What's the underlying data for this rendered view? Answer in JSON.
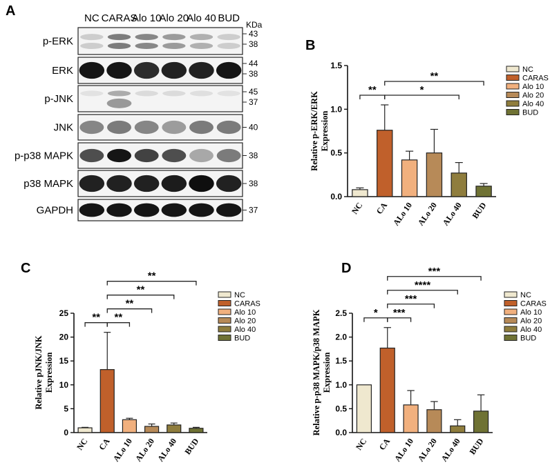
{
  "panels": {
    "A": "A",
    "B": "B",
    "C": "C",
    "D": "D"
  },
  "blot": {
    "lanes": [
      "NC",
      "CARAS",
      "Alo 10",
      "Alo 20",
      "Alo 40",
      "BUD"
    ],
    "kda_header": "KDa",
    "rows": [
      {
        "label": "p-ERK",
        "kda": [
          "43",
          "38"
        ],
        "style": "doublet-faint",
        "intensity": [
          0.15,
          0.55,
          0.5,
          0.4,
          0.3,
          0.15
        ]
      },
      {
        "label": "ERK",
        "kda": [
          "44",
          "38"
        ],
        "style": "dark",
        "intensity": [
          0.95,
          0.95,
          0.85,
          0.9,
          0.9,
          0.95
        ]
      },
      {
        "label": "p-JNK",
        "kda": [
          "45",
          "37"
        ],
        "style": "jnk",
        "intensity": [
          0.1,
          0.5,
          0.15,
          0.15,
          0.12,
          0.1
        ]
      },
      {
        "label": "JNK",
        "kda": [
          "40"
        ],
        "style": "mid",
        "intensity": [
          0.45,
          0.5,
          0.45,
          0.35,
          0.5,
          0.5
        ]
      },
      {
        "label": "p-p38 MAPK",
        "kda": [
          "38"
        ],
        "style": "mid",
        "intensity": [
          0.7,
          0.95,
          0.75,
          0.7,
          0.3,
          0.5
        ]
      },
      {
        "label": "p38 MAPK",
        "kda": [
          "38"
        ],
        "style": "dark",
        "intensity": [
          0.9,
          0.9,
          0.9,
          0.92,
          0.98,
          0.9
        ]
      },
      {
        "label": "GAPDH",
        "kda": [
          "37"
        ],
        "style": "dark",
        "intensity": [
          0.95,
          0.95,
          0.95,
          0.95,
          0.95,
          0.95
        ]
      }
    ]
  },
  "chart_data": [
    {
      "type": "bar",
      "panel": "B",
      "categories": [
        "NC",
        "CA",
        "ALo 10",
        "ALo 20",
        "ALo 40",
        "BUD"
      ],
      "values": [
        0.08,
        0.76,
        0.42,
        0.5,
        0.27,
        0.12
      ],
      "errors": [
        0.02,
        0.29,
        0.1,
        0.27,
        0.12,
        0.03
      ],
      "ylabel": "Relative p-ERK/ERK Expression",
      "yticks": [
        "0.0",
        "0.5",
        "1.0",
        "1.5"
      ],
      "ylim": [
        0,
        1.5
      ],
      "legend": [
        "NC",
        "CARAS",
        "Alo 10",
        "Alo 20",
        "Alo 40",
        "BUD"
      ],
      "colors": [
        "#efe8cf",
        "#c0602b",
        "#f1b07e",
        "#b78a58",
        "#8f7d3d",
        "#6f7234"
      ],
      "significance": [
        {
          "from": 0,
          "to": 1,
          "label": "**"
        },
        {
          "from": 1,
          "to": 4,
          "label": "*"
        },
        {
          "from": 1,
          "to": 5,
          "label": "**"
        }
      ]
    },
    {
      "type": "bar",
      "panel": "C",
      "categories": [
        "NC",
        "CA",
        "ALo 10",
        "ALo 20",
        "ALo 40",
        "BUD"
      ],
      "values": [
        1.0,
        13.2,
        2.7,
        1.3,
        1.6,
        0.9
      ],
      "errors": [
        0.1,
        7.8,
        0.3,
        0.5,
        0.4,
        0.2
      ],
      "ylabel": "Relative pJNK/JNK Expression",
      "yticks": [
        "0",
        "5",
        "10",
        "15",
        "20",
        "25"
      ],
      "ylim": [
        0,
        25
      ],
      "legend": [
        "NC",
        "CARAS",
        "Alo 10",
        "Alo 20",
        "Alo 40",
        "BUD"
      ],
      "colors": [
        "#efe8cf",
        "#c0602b",
        "#f1b07e",
        "#b78a58",
        "#8f7d3d",
        "#6f7234"
      ],
      "significance": [
        {
          "from": 0,
          "to": 1,
          "label": "**"
        },
        {
          "from": 1,
          "to": 2,
          "label": "**"
        },
        {
          "from": 1,
          "to": 3,
          "label": "**"
        },
        {
          "from": 1,
          "to": 4,
          "label": "**"
        },
        {
          "from": 1,
          "to": 5,
          "label": "**"
        }
      ]
    },
    {
      "type": "bar",
      "panel": "D",
      "categories": [
        "NC",
        "CA",
        "ALo 10",
        "ALo 20",
        "ALo 40",
        "BUD"
      ],
      "values": [
        1.0,
        1.77,
        0.58,
        0.48,
        0.14,
        0.45
      ],
      "errors": [
        0.0,
        0.43,
        0.3,
        0.17,
        0.13,
        0.34
      ],
      "ylabel": "Relative p-p38 MAPK/p38 MAPK Expression",
      "yticks": [
        "0.0",
        "0.5",
        "1.0",
        "1.5",
        "2.0",
        "2.5"
      ],
      "ylim": [
        0,
        2.5
      ],
      "legend": [
        "NC",
        "CARAS",
        "Alo 10",
        "Alo 20",
        "Alo 40",
        "BUD"
      ],
      "colors": [
        "#efe8cf",
        "#c0602b",
        "#f1b07e",
        "#b78a58",
        "#8f7d3d",
        "#6f7234"
      ],
      "significance": [
        {
          "from": 0,
          "to": 1,
          "label": "*"
        },
        {
          "from": 1,
          "to": 2,
          "label": "***"
        },
        {
          "from": 1,
          "to": 3,
          "label": "***"
        },
        {
          "from": 1,
          "to": 4,
          "label": "****"
        },
        {
          "from": 1,
          "to": 5,
          "label": "***"
        }
      ]
    }
  ]
}
